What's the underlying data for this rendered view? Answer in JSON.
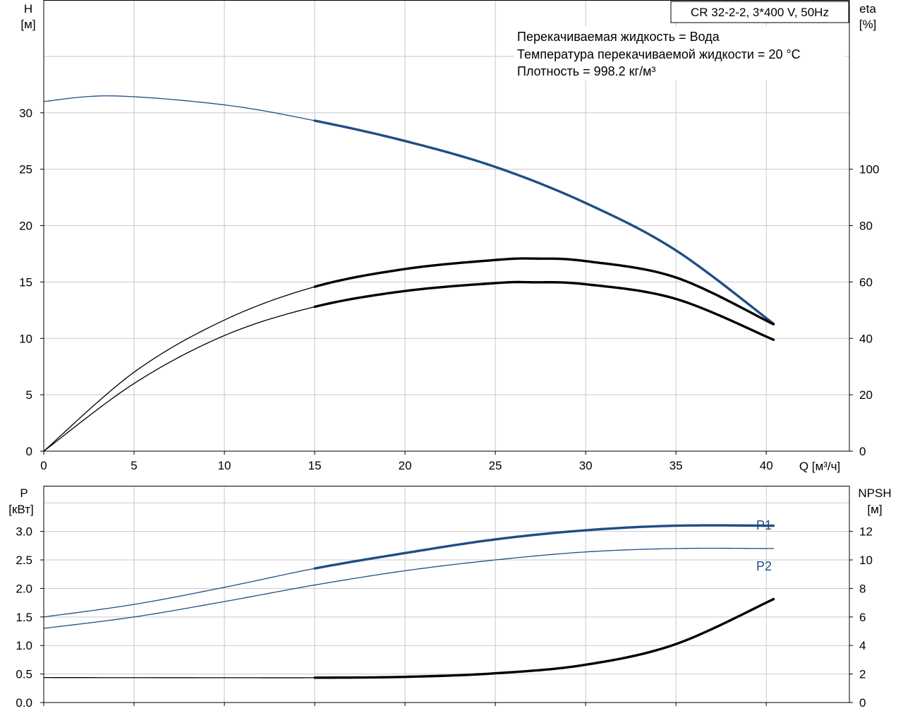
{
  "title": "CR 32-2-2, 3*400 V, 50Hz",
  "info_lines": [
    "Перекачиваемая жидкость = Вода",
    "Температура перекачиваемой жидкости = 20 °C",
    "Плотность = 998.2 кг/м³"
  ],
  "colors": {
    "blue": "#1f4e84",
    "black": "#000000",
    "grid": "#c8c8c8",
    "frame": "#000000"
  },
  "chart_data": [
    {
      "type": "line",
      "xlabel": "Q [м³/ч]",
      "x_ticks": [
        0,
        5,
        10,
        15,
        20,
        25,
        30,
        35,
        40
      ],
      "xlim": [
        0,
        44.6
      ],
      "y_left": {
        "label": [
          "H",
          "[м]"
        ],
        "ticks": [
          0,
          5,
          10,
          15,
          20,
          25,
          30
        ],
        "lim": [
          0,
          40
        ]
      },
      "y_right": {
        "label": [
          "eta",
          "[%]"
        ],
        "ticks": [
          0,
          20,
          40,
          60,
          80,
          100
        ],
        "lim": [
          0,
          160
        ]
      },
      "series": [
        {
          "axis": "left",
          "color": "blue",
          "bold_from": 15,
          "points": [
            [
              0,
              31.0
            ],
            [
              3.8,
              31.5
            ],
            [
              10,
              30.7
            ],
            [
              15,
              29.3
            ],
            [
              20,
              27.5
            ],
            [
              25,
              25.2
            ],
            [
              30,
              22.0
            ],
            [
              35,
              17.8
            ],
            [
              40.4,
              11.3
            ]
          ]
        },
        {
          "axis": "right",
          "color": "black",
          "bold_from": 15,
          "points": [
            [
              0,
              0
            ],
            [
              5,
              28
            ],
            [
              10,
              46.5
            ],
            [
              15,
              58.3
            ],
            [
              20,
              64.6
            ],
            [
              25,
              67.8
            ],
            [
              27.2,
              68.3
            ],
            [
              30,
              67.4
            ],
            [
              35,
              61.6
            ],
            [
              40.4,
              45
            ]
          ]
        },
        {
          "axis": "right",
          "color": "black",
          "bold_from": 15,
          "points": [
            [
              0,
              0
            ],
            [
              5,
              24
            ],
            [
              10,
              41
            ],
            [
              15,
              51.2
            ],
            [
              20,
              56.8
            ],
            [
              25,
              59.6
            ],
            [
              27,
              59.9
            ],
            [
              30,
              59.2
            ],
            [
              35,
              54.0
            ],
            [
              40.4,
              39.5
            ]
          ]
        }
      ]
    },
    {
      "type": "line",
      "x_ticks": [
        0,
        5,
        10,
        15,
        20,
        25,
        30,
        35,
        40
      ],
      "xlim": [
        0,
        44.6
      ],
      "y_left": {
        "label": [
          "P",
          "[кВт]"
        ],
        "ticks": [
          0.0,
          0.5,
          1.0,
          1.5,
          2.0,
          2.5,
          3.0
        ],
        "tick_labels": [
          "0.0",
          "0.5",
          "1.0",
          "1.5",
          "2.0",
          "2.5",
          "3.0"
        ],
        "lim": [
          0,
          3.8
        ]
      },
      "y_right": {
        "label": [
          "NPSH",
          "[м]"
        ],
        "ticks": [
          0,
          2,
          4,
          6,
          8,
          10,
          12
        ],
        "lim": [
          0,
          15.2
        ]
      },
      "series": [
        {
          "name": "P1",
          "axis": "left",
          "color": "blue",
          "bold_from": 15,
          "points": [
            [
              0,
              1.5
            ],
            [
              5,
              1.72
            ],
            [
              10,
              2.02
            ],
            [
              15,
              2.35
            ],
            [
              20,
              2.62
            ],
            [
              25,
              2.86
            ],
            [
              30,
              3.02
            ],
            [
              35,
              3.1
            ],
            [
              40.4,
              3.1
            ]
          ]
        },
        {
          "name": "P2",
          "axis": "left",
          "color": "blue",
          "bold_from": 999,
          "points": [
            [
              0,
              1.3
            ],
            [
              5,
              1.5
            ],
            [
              10,
              1.77
            ],
            [
              15,
              2.06
            ],
            [
              20,
              2.31
            ],
            [
              25,
              2.5
            ],
            [
              30,
              2.64
            ],
            [
              35,
              2.7
            ],
            [
              40.4,
              2.7
            ]
          ]
        },
        {
          "axis": "right",
          "color": "black",
          "bold_from": 15,
          "points": [
            [
              0,
              1.75
            ],
            [
              10,
              1.74
            ],
            [
              15,
              1.74
            ],
            [
              20,
              1.8
            ],
            [
              25,
              2.05
            ],
            [
              30,
              2.65
            ],
            [
              35,
              4.1
            ],
            [
              40.4,
              7.25
            ]
          ]
        }
      ]
    }
  ]
}
